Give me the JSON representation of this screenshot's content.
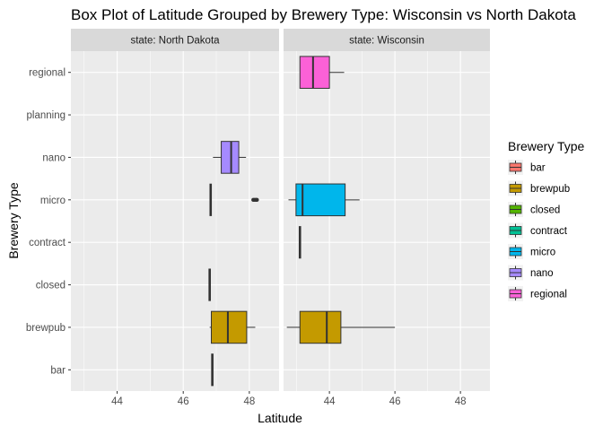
{
  "chart_data": {
    "type": "boxplot",
    "orientation": "horizontal",
    "title": "Box Plot of Latitude Grouped by Brewery Type: Wisconsin vs North Dakota",
    "xlabel": "Latitude",
    "ylabel": "Brewery Type",
    "xlim": [
      42.6,
      48.9
    ],
    "xticks": [
      44,
      46,
      48
    ],
    "grid": true,
    "legend": {
      "title": "Brewery Type",
      "position": "right",
      "entries": [
        {
          "label": "bar",
          "color": "#F8766D"
        },
        {
          "label": "brewpub",
          "color": "#C49A00"
        },
        {
          "label": "closed",
          "color": "#53B400"
        },
        {
          "label": "contract",
          "color": "#00C094"
        },
        {
          "label": "micro",
          "color": "#00B6EB"
        },
        {
          "label": "nano",
          "color": "#A58AFF"
        },
        {
          "label": "regional",
          "color": "#FB61D7"
        }
      ]
    },
    "categories": [
      "bar",
      "brewpub",
      "closed",
      "contract",
      "micro",
      "nano",
      "planning",
      "regional"
    ],
    "panels": [
      {
        "strip": "state: North Dakota",
        "boxes": [
          {
            "category": "bar",
            "min": 46.88,
            "q1": 46.88,
            "median": 46.88,
            "q3": 46.88,
            "max": 46.88,
            "outliers": []
          },
          {
            "category": "brewpub",
            "min": 46.8,
            "q1": 46.85,
            "median": 47.35,
            "q3": 47.92,
            "max": 48.18,
            "outliers": []
          },
          {
            "category": "closed",
            "min": 46.8,
            "q1": 46.8,
            "median": 46.8,
            "q3": 46.8,
            "max": 46.8,
            "outliers": []
          },
          {
            "category": "micro",
            "min": 46.83,
            "q1": 46.83,
            "median": 46.83,
            "q3": 46.83,
            "max": 46.83,
            "outliers": [
              48.12,
              48.16,
              48.2,
              48.23
            ]
          },
          {
            "category": "nano",
            "min": 46.9,
            "q1": 47.15,
            "median": 47.45,
            "q3": 47.68,
            "max": 47.9,
            "outliers": []
          }
        ]
      },
      {
        "strip": "state: Wisconsin",
        "boxes": [
          {
            "category": "brewpub",
            "min": 42.7,
            "q1": 43.1,
            "median": 43.92,
            "q3": 44.35,
            "max": 46.0,
            "outliers": []
          },
          {
            "category": "contract",
            "min": 43.1,
            "q1": 43.1,
            "median": 43.1,
            "q3": 43.1,
            "max": 43.1,
            "outliers": []
          },
          {
            "category": "micro",
            "min": 42.75,
            "q1": 42.98,
            "median": 43.18,
            "q3": 44.48,
            "max": 44.92,
            "outliers": []
          },
          {
            "category": "regional",
            "min": 43.1,
            "q1": 43.1,
            "median": 43.5,
            "q3": 44.0,
            "max": 44.45,
            "outliers": []
          }
        ]
      }
    ]
  }
}
